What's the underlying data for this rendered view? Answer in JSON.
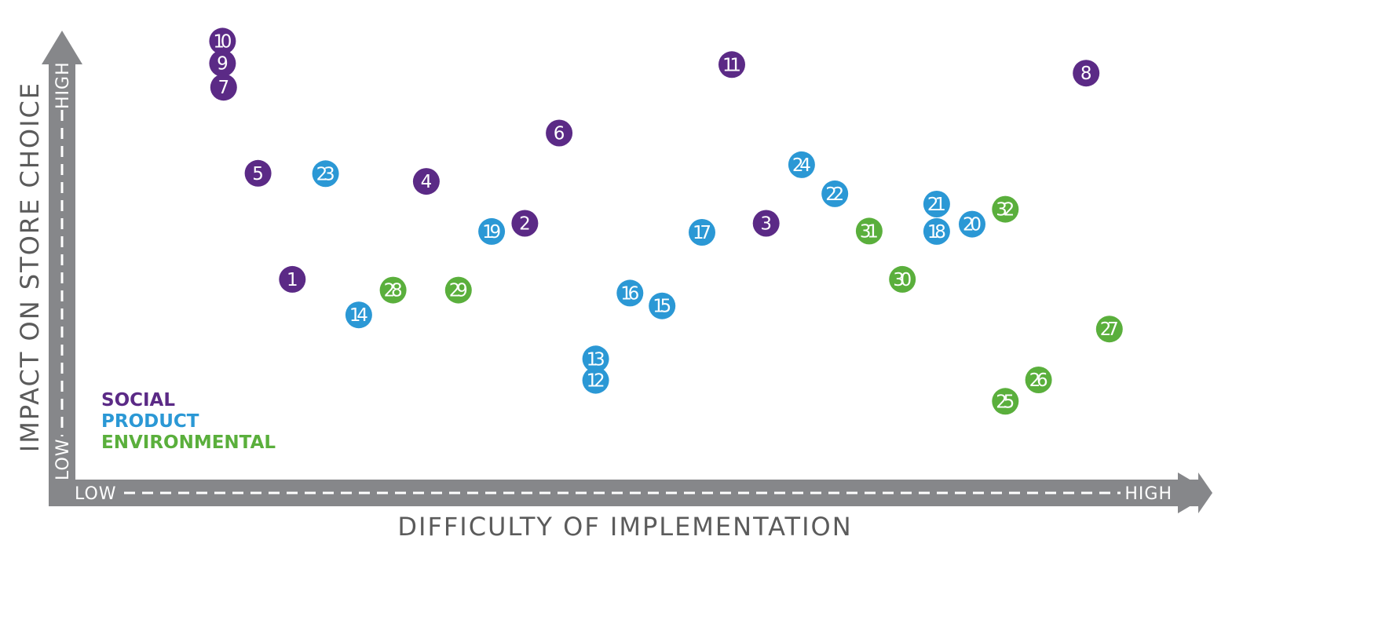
{
  "chart_data": {
    "type": "scatter",
    "title": "",
    "xlabel": "DIFFICULTY OF IMPLEMENTATION",
    "ylabel": "IMPACT ON STORE CHOICE",
    "x_low_label": "LOW",
    "x_high_label": "HIGH",
    "y_low_label": "LOW",
    "y_high_label": "HIGH",
    "xlim": [
      0,
      100
    ],
    "ylim": [
      0,
      100
    ],
    "grid": false,
    "legend_position": "bottom-left",
    "series": [
      {
        "name": "SOCIAL",
        "color": "#5b2a86",
        "points": [
          {
            "id": "1",
            "x": 18.6,
            "y": 45.7
          },
          {
            "id": "2",
            "x": 39.6,
            "y": 58.8
          },
          {
            "id": "3",
            "x": 61.4,
            "y": 58.8
          },
          {
            "id": "4",
            "x": 30.7,
            "y": 68.6
          },
          {
            "id": "5",
            "x": 15.5,
            "y": 70.5
          },
          {
            "id": "6",
            "x": 42.7,
            "y": 79.9
          },
          {
            "id": "7",
            "x": 12.4,
            "y": 90.6
          },
          {
            "id": "8",
            "x": 90.3,
            "y": 93.9
          },
          {
            "id": "9",
            "x": 12.3,
            "y": 96.2
          },
          {
            "id": "10",
            "x": 12.3,
            "y": 101.4
          },
          {
            "id": "11",
            "x": 58.3,
            "y": 95.9
          }
        ]
      },
      {
        "name": "PRODUCT",
        "color": "#2b98d5",
        "points": [
          {
            "id": "12",
            "x": 46.0,
            "y": 22.1
          },
          {
            "id": "13",
            "x": 46.0,
            "y": 27.1
          },
          {
            "id": "14",
            "x": 24.6,
            "y": 37.4
          },
          {
            "id": "15",
            "x": 52.0,
            "y": 39.5
          },
          {
            "id": "16",
            "x": 49.1,
            "y": 42.5
          },
          {
            "id": "17",
            "x": 55.6,
            "y": 56.7
          },
          {
            "id": "18",
            "x": 76.8,
            "y": 56.9
          },
          {
            "id": "19",
            "x": 36.6,
            "y": 56.9
          },
          {
            "id": "20",
            "x": 80.0,
            "y": 58.6
          },
          {
            "id": "21",
            "x": 76.8,
            "y": 63.3
          },
          {
            "id": "22",
            "x": 67.6,
            "y": 65.7
          },
          {
            "id": "23",
            "x": 21.6,
            "y": 70.4
          },
          {
            "id": "24",
            "x": 64.6,
            "y": 72.5
          }
        ]
      },
      {
        "name": "ENVIRONMENTAL",
        "color": "#5aaf3c",
        "points": [
          {
            "id": "25",
            "x": 83.0,
            "y": 17.2
          },
          {
            "id": "26",
            "x": 86.0,
            "y": 22.2
          },
          {
            "id": "27",
            "x": 92.4,
            "y": 34.1
          },
          {
            "id": "28",
            "x": 27.7,
            "y": 43.2
          },
          {
            "id": "29",
            "x": 33.6,
            "y": 43.2
          },
          {
            "id": "30",
            "x": 73.7,
            "y": 45.7
          },
          {
            "id": "31",
            "x": 70.7,
            "y": 57.0
          },
          {
            "id": "32",
            "x": 83.0,
            "y": 62.1
          }
        ]
      }
    ]
  }
}
